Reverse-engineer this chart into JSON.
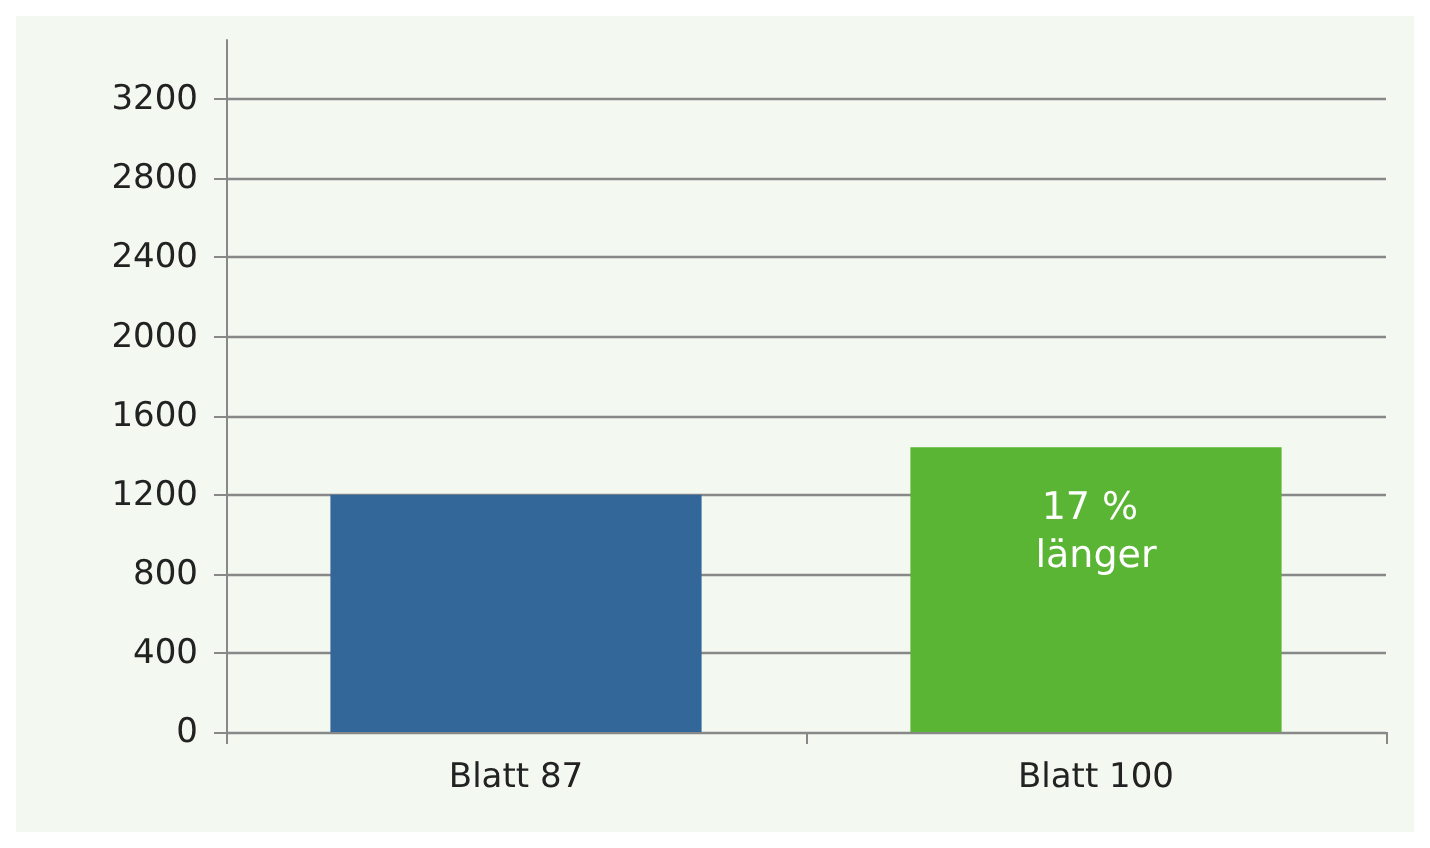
{
  "chart_data": {
    "type": "bar",
    "categories": [
      "Blatt 87",
      "Blatt 100"
    ],
    "values": [
      1200,
      1440
    ],
    "colors": [
      "#336699",
      "#5ab534"
    ],
    "ylim": [
      0,
      3500
    ],
    "yticks": [
      0,
      400,
      800,
      1200,
      1600,
      2000,
      2400,
      2800,
      3200
    ],
    "grid": "y",
    "annotations": [
      {
        "text": "17 % länger",
        "x": "Blatt 100",
        "y": 1440
      }
    ]
  }
}
